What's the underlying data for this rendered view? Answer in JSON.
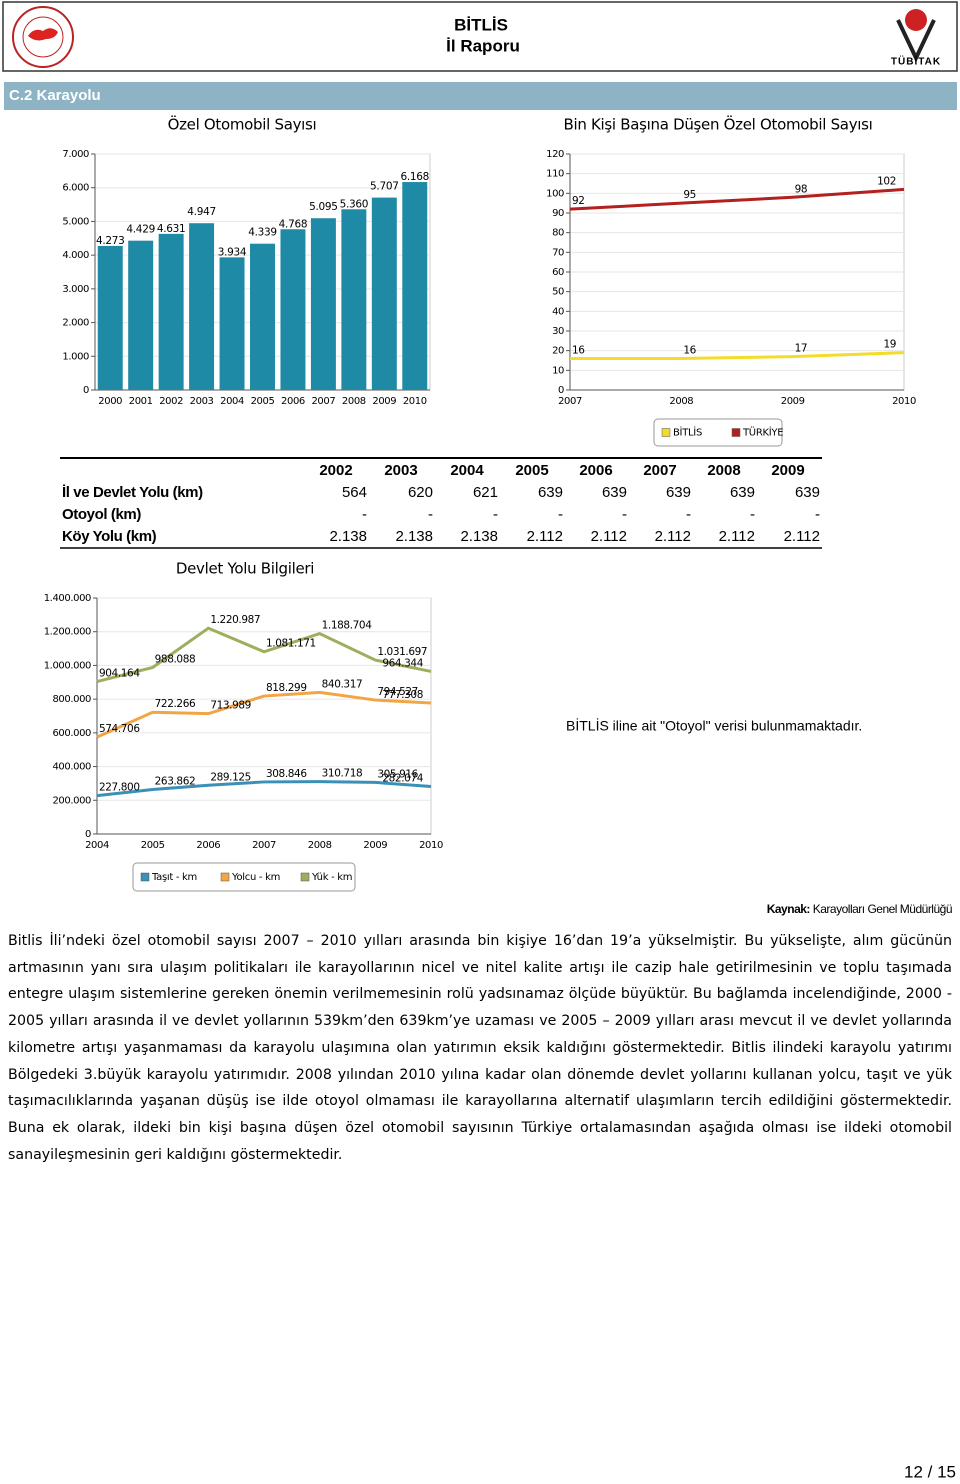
{
  "header": {
    "title": "BİTLİS",
    "subtitle": "İl Raporu",
    "logo_text": "TÜBİTAK"
  },
  "section_title": "C.2 Karayolu",
  "chart_data": [
    {
      "type": "bar",
      "title": "Özel Otomobil Sayısı",
      "categories": [
        "2000",
        "2001",
        "2002",
        "2003",
        "2004",
        "2005",
        "2006",
        "2007",
        "2008",
        "2009",
        "2010"
      ],
      "values": [
        4273,
        4429,
        4631,
        4947,
        3934,
        4339,
        4768,
        5095,
        5360,
        5707,
        6168
      ],
      "value_labels": [
        "4.273",
        "4.429",
        "4.631",
        "4.947",
        "3.934",
        "4.339",
        "4.768",
        "5.095",
        "5.360",
        "5.707",
        "6.168"
      ],
      "color": "#1e8aa6",
      "ylim": [
        0,
        7000
      ],
      "yticks": [
        0,
        {
          "value": 1000,
          "label": "1.000"
        },
        {
          "value": 2000,
          "label": "2.000"
        },
        {
          "value": 3000,
          "label": "3.000"
        },
        {
          "value": 4000,
          "label": "4.000"
        },
        {
          "value": 5000,
          "label": "5.000"
        },
        {
          "value": 6000,
          "label": "6.000"
        },
        {
          "value": 7000,
          "label": "7.000"
        }
      ],
      "grid": true
    },
    {
      "type": "line",
      "title": "Bin Kişi Başına Düşen Özel Otomobil Sayısı",
      "categories": [
        "2007",
        "2008",
        "2009",
        "2010"
      ],
      "series": [
        {
          "name": "BİTLİS",
          "color": "#f2dc2a",
          "values": [
            16,
            16,
            17,
            19
          ]
        },
        {
          "name": "TÜRKİYE",
          "color": "#b3201e",
          "values": [
            92,
            95,
            98,
            102
          ]
        }
      ],
      "ylim": [
        0,
        120
      ],
      "yticks": [
        0,
        10,
        20,
        30,
        40,
        50,
        60,
        70,
        80,
        90,
        100,
        110,
        120
      ],
      "grid": true,
      "legend": "bottom"
    },
    {
      "type": "line",
      "title": "Devlet Yolu Bilgileri",
      "categories": [
        "2004",
        "2005",
        "2006",
        "2007",
        "2008",
        "2009",
        "2010"
      ],
      "series": [
        {
          "name": "Taşıt - km",
          "color": "#3a90b8",
          "values": [
            227800,
            263862,
            289125,
            308846,
            310718,
            305916,
            282074
          ],
          "value_labels": [
            "227.800",
            "263.862",
            "289.125",
            "308.846",
            "310.718",
            "305.916",
            "282.074"
          ]
        },
        {
          "name": "Yolcu - km",
          "color": "#f2a544",
          "values": [
            574706,
            722266,
            713989,
            818299,
            840317,
            794527,
            777308
          ],
          "value_labels": [
            "574.706",
            "722.266",
            "713.989",
            "818.299",
            "840.317",
            "794.527",
            "777.308"
          ]
        },
        {
          "name": "Yük - km",
          "color": "#9caf5e",
          "values": [
            904164,
            988088,
            1220987,
            1081171,
            1188704,
            1031697,
            964344
          ],
          "value_labels": [
            "904.164",
            "988.088",
            "1.220.987",
            "1.081.171",
            "1.188.704",
            "1.031.697",
            "964.344"
          ]
        }
      ],
      "ylim": [
        0,
        1400000
      ],
      "yticks": [
        0,
        {
          "value": 200000,
          "label": "200.000"
        },
        {
          "value": 400000,
          "label": "400.000"
        },
        {
          "value": 600000,
          "label": "600.000"
        },
        {
          "value": 800000,
          "label": "800.000"
        },
        {
          "value": 1000000,
          "label": "1.000.000"
        },
        {
          "value": 1200000,
          "label": "1.200.000"
        },
        {
          "value": 1400000,
          "label": "1.400.000"
        }
      ],
      "grid": true,
      "legend": "bottom"
    }
  ],
  "table": {
    "columns": [
      "2002",
      "2003",
      "2004",
      "2005",
      "2006",
      "2007",
      "2008",
      "2009"
    ],
    "rows": [
      [
        "İl ve Devlet Yolu (km)",
        "564",
        "620",
        "621",
        "639",
        "639",
        "639",
        "639",
        "639"
      ],
      [
        "Otoyol (km)",
        "-",
        "-",
        "-",
        "-",
        "-",
        "-",
        "-",
        "-"
      ],
      [
        "Köy Yolu (km)",
        "2.138",
        "2.138",
        "2.138",
        "2.112",
        "2.112",
        "2.112",
        "2.112",
        "2.112"
      ]
    ]
  },
  "note": "BİTLİS iline ait \"Otoyol\" verisi bulunmamaktadır.",
  "source": {
    "label": "Kaynak:",
    "text": "Karayolları Genel Müdürlüğü"
  },
  "paragraph": "Bitlis İli’ndeki özel otomobil sayısı 2007 – 2010 yılları arasında bin kişiye 16’dan 19’a yükselmiştir. Bu yükselişte, alım gücünün artmasının yanı sıra ulaşım politikaları ile karayollarının nicel ve nitel kalite artışı ile cazip hale getirilmesinin ve toplu taşımada entegre ulaşım sistemlerine gereken önemin verilmemesinin rolü yadsınamaz ölçüde büyüktür. Bu bağlamda incelendiğinde, 2000 - 2005 yılları arasında il ve devlet yollarının 539km’den 639km’ye uzaması ve 2005 – 2009 yılları arası mevcut il ve devlet yollarında kilometre artışı yaşanmaması da karayolu ulaşımına olan yatırımın eksik kaldığını göstermektedir. Bitlis ilindeki karayolu yatırımı Bölgedeki 3.büyük karayolu yatırımıdır. 2008 yılından 2010 yılına kadar olan dönemde devlet yollarını kullanan yolcu, taşıt ve yük taşımacılıklarında yaşanan düşüş ise ilde otoyol olmaması ile karayollarına alternatif ulaşımların tercih edildiğini göstermektedir. Buna ek olarak, ildeki bin kişi başına düşen özel otomobil sayısının Türkiye ortalamasından aşağıda olması ise ildeki otomobil sanayileşmesinin geri kaldığını göstermektedir.",
  "page_number": "12 / 15"
}
